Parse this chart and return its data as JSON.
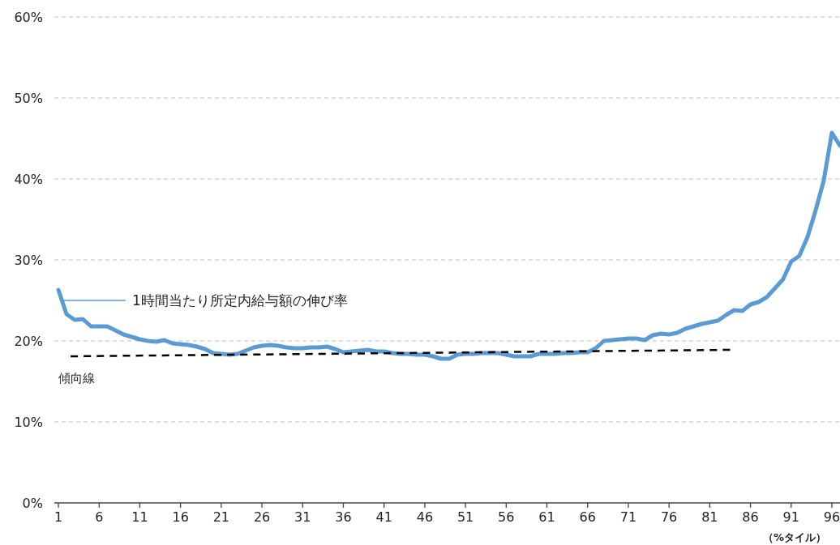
{
  "chart_data": {
    "type": "line",
    "xlabel": "（%タイル）",
    "x": [
      1,
      2,
      3,
      4,
      5,
      6,
      7,
      8,
      9,
      10,
      11,
      12,
      13,
      14,
      15,
      16,
      17,
      18,
      19,
      20,
      21,
      22,
      23,
      24,
      25,
      26,
      27,
      28,
      29,
      30,
      31,
      32,
      33,
      34,
      35,
      36,
      37,
      38,
      39,
      40,
      41,
      42,
      43,
      44,
      45,
      46,
      47,
      48,
      49,
      50,
      51,
      52,
      53,
      54,
      55,
      56,
      57,
      58,
      59,
      60,
      61,
      62,
      63,
      64,
      65,
      66,
      67,
      68,
      69,
      70,
      71,
      72,
      73,
      74,
      75,
      76,
      77,
      78,
      79,
      80,
      81,
      82,
      83,
      84,
      85,
      86,
      87,
      88,
      89,
      90,
      91,
      92,
      93,
      94,
      95,
      96,
      97
    ],
    "xlim": [
      0.5,
      97
    ],
    "xticks": [
      1,
      6,
      11,
      16,
      21,
      26,
      31,
      36,
      41,
      46,
      51,
      56,
      61,
      66,
      71,
      76,
      81,
      86,
      91,
      96
    ],
    "ylim": [
      0,
      60
    ],
    "yticks": [
      {
        "value": 0,
        "label": "0%"
      },
      {
        "value": 10,
        "label": "10%"
      },
      {
        "value": 20,
        "label": "20%"
      },
      {
        "value": 30,
        "label": "30%"
      },
      {
        "value": 40,
        "label": "40%"
      },
      {
        "value": 50,
        "label": "50%"
      },
      {
        "value": 60,
        "label": "60%"
      }
    ],
    "grid": "y",
    "series": [
      {
        "name": "1時間当たり所定内給与額の伸び率",
        "color": "#5b9bd5",
        "line_style": "solid",
        "values": [
          26.3,
          23.3,
          22.6,
          22.7,
          21.8,
          21.8,
          21.8,
          21.3,
          20.8,
          20.5,
          20.2,
          20.0,
          19.9,
          20.1,
          19.7,
          19.6,
          19.5,
          19.3,
          19.0,
          18.5,
          18.4,
          18.3,
          18.4,
          18.8,
          19.2,
          19.4,
          19.5,
          19.4,
          19.2,
          19.1,
          19.1,
          19.2,
          19.2,
          19.3,
          19.0,
          18.6,
          18.7,
          18.8,
          18.9,
          18.7,
          18.7,
          18.5,
          18.4,
          18.4,
          18.3,
          18.3,
          18.1,
          17.8,
          17.8,
          18.3,
          18.4,
          18.4,
          18.5,
          18.5,
          18.5,
          18.3,
          18.1,
          18.1,
          18.1,
          18.4,
          18.4,
          18.4,
          18.5,
          18.5,
          18.6,
          18.6,
          19.1,
          20.0,
          20.1,
          20.2,
          20.3,
          20.3,
          20.1,
          20.7,
          20.9,
          20.8,
          21.0,
          21.5,
          21.8,
          22.1,
          22.3,
          22.5,
          23.2,
          23.8,
          23.7,
          24.5,
          24.8,
          25.4,
          26.5,
          27.6,
          29.8,
          30.5,
          32.8,
          36.1,
          39.8,
          45.7,
          44.1
        ]
      },
      {
        "name": "傾向線",
        "type": "line",
        "color": "#000000",
        "line_style": "dashed",
        "x": [
          2.5,
          83.5
        ],
        "values": [
          18.1,
          18.9
        ]
      }
    ]
  }
}
